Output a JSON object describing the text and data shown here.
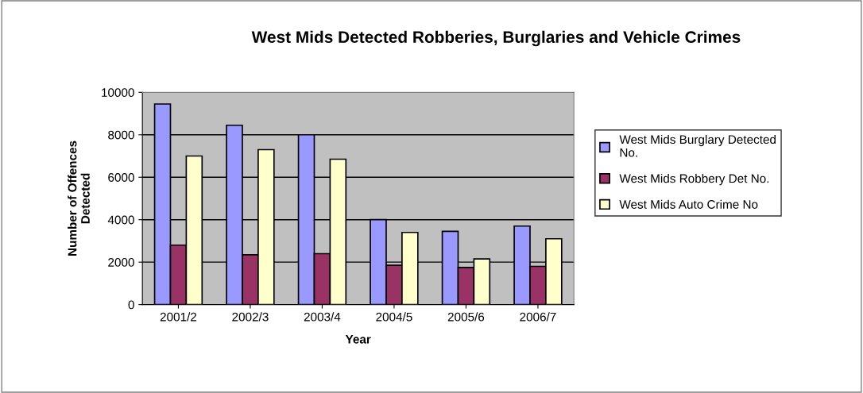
{
  "chart_data": {
    "type": "bar",
    "title": "West Mids Detected Robberies, Burglaries and Vehicle Crimes",
    "xlabel": "Year",
    "ylabel": "Number of Offences\nDetected",
    "categories": [
      "2001/2",
      "2002/3",
      "2003/4",
      "2004/5",
      "2005/6",
      "2006/7"
    ],
    "series": [
      {
        "name": "West Mids Burglary Detected\nNo.",
        "color": "#9999ff",
        "values": [
          9450,
          8450,
          8000,
          4000,
          3450,
          3700
        ]
      },
      {
        "name": "West Mids Robbery Det No.",
        "color": "#993366",
        "values": [
          2800,
          2350,
          2400,
          1850,
          1750,
          1800
        ]
      },
      {
        "name": "West Mids Auto Crime No",
        "color": "#ffffcc",
        "values": [
          7000,
          7300,
          6850,
          3400,
          2150,
          3100
        ]
      }
    ],
    "ylim": [
      0,
      10000
    ],
    "yticks": [
      0,
      2000,
      4000,
      6000,
      8000,
      10000
    ],
    "grid": "y",
    "legend": "right"
  }
}
